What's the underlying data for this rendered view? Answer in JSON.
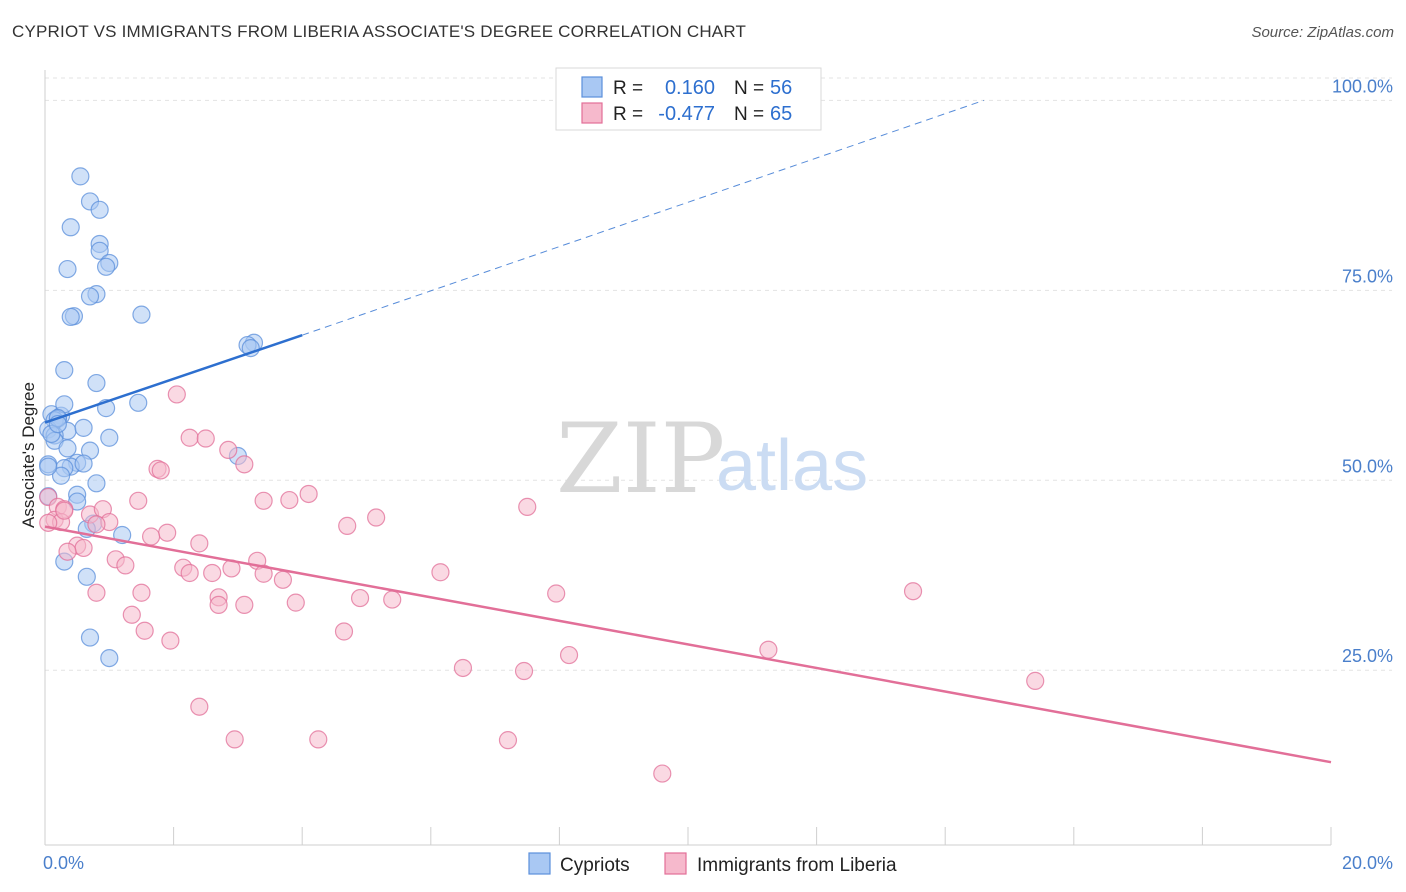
{
  "title": "CYPRIOT VS IMMIGRANTS FROM LIBERIA ASSOCIATE'S DEGREE CORRELATION CHART",
  "source": "Source: ZipAtlas.com",
  "watermark": {
    "zip": "ZIP",
    "atlas": "atlas"
  },
  "legend": {
    "rows": [
      {
        "r_label": "R =",
        "r_value": "0.160",
        "n_label": "N =",
        "n_value": "56",
        "color": "#a9c8f3"
      },
      {
        "r_label": "R =",
        "r_value": "-0.477",
        "n_label": "N =",
        "n_value": "65",
        "color": "#f6b9cc"
      }
    ]
  },
  "bottom_legend": [
    {
      "label": "Cypriots",
      "color": "#a9c8f3"
    },
    {
      "label": "Immigrants from Liberia",
      "color": "#f6b9cc"
    }
  ],
  "chart_data": {
    "type": "scatter",
    "title": "CYPRIOT VS IMMIGRANTS FROM LIBERIA ASSOCIATE'S DEGREE CORRELATION CHART",
    "xlabel": "",
    "ylabel": "Associate's Degree",
    "xlim": [
      0,
      20
    ],
    "ylim": [
      2,
      104
    ],
    "x_tick_labels": [
      "0.0%",
      "20.0%"
    ],
    "y_ticks": [
      25,
      50,
      75,
      100
    ],
    "y_tick_labels": [
      "25.0%",
      "50.0%",
      "75.0%",
      "100.0%"
    ],
    "grid": true,
    "series": [
      {
        "name": "Cypriots",
        "color": "#5b8fdb",
        "fill": "#a9c8f3",
        "trend": {
          "x": [
            0.0,
            4.0
          ],
          "y": [
            57.6,
            69.1
          ],
          "dashed_to": [
            14.6,
            100.0
          ],
          "color": "#2d6fcf"
        },
        "points": [
          [
            0.55,
            90.0
          ],
          [
            0.7,
            86.7
          ],
          [
            0.85,
            85.6
          ],
          [
            0.4,
            83.3
          ],
          [
            0.85,
            81.1
          ],
          [
            0.85,
            80.2
          ],
          [
            1.0,
            78.6
          ],
          [
            0.95,
            78.1
          ],
          [
            0.35,
            77.8
          ],
          [
            0.8,
            74.5
          ],
          [
            0.7,
            74.2
          ],
          [
            0.45,
            71.6
          ],
          [
            0.4,
            71.5
          ],
          [
            1.5,
            71.8
          ],
          [
            3.25,
            68.1
          ],
          [
            3.15,
            67.8
          ],
          [
            0.3,
            64.5
          ],
          [
            0.8,
            62.8
          ],
          [
            0.1,
            58.7
          ],
          [
            0.25,
            58.5
          ],
          [
            0.2,
            58.1
          ],
          [
            0.15,
            57.9
          ],
          [
            1.45,
            60.2
          ],
          [
            0.3,
            60.0
          ],
          [
            0.95,
            59.5
          ],
          [
            0.05,
            56.7
          ],
          [
            0.35,
            56.5
          ],
          [
            0.6,
            56.9
          ],
          [
            0.15,
            55.9
          ],
          [
            1.0,
            55.6
          ],
          [
            0.15,
            55.2
          ],
          [
            0.35,
            54.2
          ],
          [
            0.7,
            53.9
          ],
          [
            3.0,
            53.2
          ],
          [
            0.5,
            52.3
          ],
          [
            0.05,
            52.1
          ],
          [
            0.4,
            51.8
          ],
          [
            0.3,
            51.6
          ],
          [
            0.25,
            50.6
          ],
          [
            0.8,
            49.6
          ],
          [
            0.5,
            48.1
          ],
          [
            0.5,
            47.2
          ],
          [
            0.05,
            47.9
          ],
          [
            0.75,
            44.3
          ],
          [
            0.65,
            43.6
          ],
          [
            1.2,
            42.8
          ],
          [
            0.3,
            39.3
          ],
          [
            0.65,
            37.3
          ],
          [
            0.7,
            29.3
          ],
          [
            1.0,
            26.6
          ],
          [
            0.2,
            58.2
          ],
          [
            0.1,
            56.1
          ],
          [
            0.6,
            52.2
          ],
          [
            0.2,
            57.4
          ],
          [
            3.2,
            67.4
          ],
          [
            0.05,
            51.8
          ]
        ]
      },
      {
        "name": "Immigrants from Liberia",
        "color": "#e26f98",
        "fill": "#f6b9cc",
        "trend": {
          "x": [
            0.0,
            20.0
          ],
          "y": [
            43.9,
            12.9
          ],
          "color": "#e26f98"
        },
        "points": [
          [
            2.05,
            61.3
          ],
          [
            2.25,
            55.6
          ],
          [
            2.5,
            55.5
          ],
          [
            2.85,
            54.0
          ],
          [
            3.1,
            52.1
          ],
          [
            1.75,
            51.5
          ],
          [
            1.8,
            51.3
          ],
          [
            0.05,
            47.8
          ],
          [
            0.2,
            46.5
          ],
          [
            0.3,
            46.2
          ],
          [
            4.1,
            48.2
          ],
          [
            3.4,
            47.3
          ],
          [
            3.8,
            47.4
          ],
          [
            1.45,
            47.3
          ],
          [
            7.5,
            46.5
          ],
          [
            0.7,
            45.5
          ],
          [
            0.9,
            46.2
          ],
          [
            5.15,
            45.1
          ],
          [
            0.15,
            44.8
          ],
          [
            0.25,
            44.5
          ],
          [
            0.05,
            44.4
          ],
          [
            1.0,
            44.5
          ],
          [
            0.8,
            44.2
          ],
          [
            4.7,
            44.0
          ],
          [
            1.9,
            43.1
          ],
          [
            1.65,
            42.6
          ],
          [
            2.4,
            41.7
          ],
          [
            0.5,
            41.4
          ],
          [
            0.6,
            41.1
          ],
          [
            0.35,
            40.6
          ],
          [
            3.3,
            39.4
          ],
          [
            1.1,
            39.6
          ],
          [
            1.25,
            38.8
          ],
          [
            2.15,
            38.5
          ],
          [
            2.25,
            37.8
          ],
          [
            2.6,
            37.8
          ],
          [
            2.9,
            38.4
          ],
          [
            3.4,
            37.7
          ],
          [
            3.7,
            36.9
          ],
          [
            6.15,
            37.9
          ],
          [
            0.8,
            35.2
          ],
          [
            1.5,
            35.2
          ],
          [
            2.7,
            34.6
          ],
          [
            4.9,
            34.5
          ],
          [
            5.4,
            34.3
          ],
          [
            7.95,
            35.1
          ],
          [
            13.5,
            35.4
          ],
          [
            3.9,
            33.9
          ],
          [
            2.7,
            33.6
          ],
          [
            3.1,
            33.6
          ],
          [
            1.35,
            32.3
          ],
          [
            1.55,
            30.2
          ],
          [
            4.65,
            30.1
          ],
          [
            1.95,
            28.9
          ],
          [
            8.15,
            27.0
          ],
          [
            11.25,
            27.7
          ],
          [
            6.5,
            25.3
          ],
          [
            7.45,
            24.9
          ],
          [
            15.4,
            23.6
          ],
          [
            2.4,
            20.2
          ],
          [
            2.95,
            15.9
          ],
          [
            4.25,
            15.9
          ],
          [
            7.2,
            15.8
          ],
          [
            9.6,
            11.4
          ],
          [
            0.3,
            46.0
          ]
        ]
      }
    ]
  }
}
